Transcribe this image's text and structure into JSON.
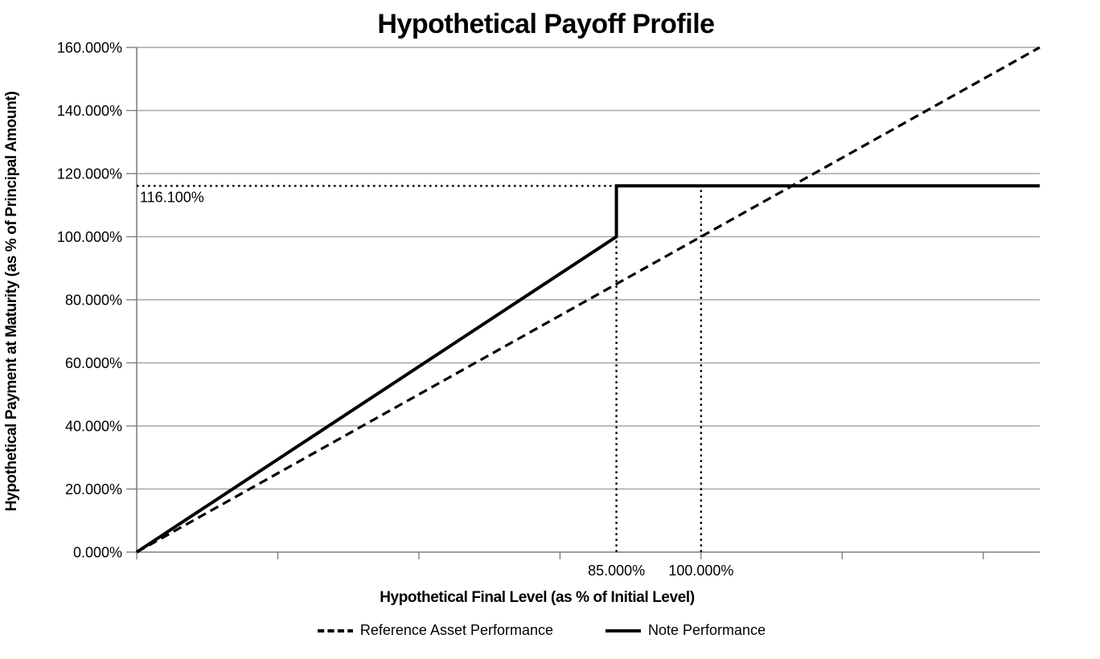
{
  "chart_data": {
    "type": "line",
    "title": "Hypothetical Payoff Profile",
    "xlabel": "Hypothetical Final Level (as % of Initial Level)",
    "ylabel": "Hypothetical Payment at Maturity (as % of Principal Amount)",
    "xlim": [
      0,
      160
    ],
    "ylim": [
      0,
      160
    ],
    "grid": true,
    "legend_position": "bottom",
    "y_ticks": [
      {
        "value": 0,
        "label": "0.000%"
      },
      {
        "value": 20,
        "label": "20.000%"
      },
      {
        "value": 40,
        "label": "40.000%"
      },
      {
        "value": 60,
        "label": "60.000%"
      },
      {
        "value": 80,
        "label": "80.000%"
      },
      {
        "value": 100,
        "label": "100.000%"
      },
      {
        "value": 120,
        "label": "120.000%"
      },
      {
        "value": 140,
        "label": "140.000%"
      },
      {
        "value": 160,
        "label": "160.000%"
      }
    ],
    "x_tick_marks": [
      0,
      25,
      50,
      75,
      100,
      125,
      150
    ],
    "x_tick_labels": [
      {
        "value": 85,
        "label": "85.000%"
      },
      {
        "value": 100,
        "label": "100.000%"
      }
    ],
    "series": [
      {
        "name": "Reference Asset Performance",
        "style": "dashed",
        "color": "#000000",
        "points": [
          [
            0,
            0
          ],
          [
            160,
            160
          ]
        ]
      },
      {
        "name": "Note Performance",
        "style": "solid",
        "color": "#000000",
        "points": [
          [
            0,
            0
          ],
          [
            85,
            100
          ],
          [
            85,
            116.1
          ],
          [
            160,
            116.1
          ]
        ]
      }
    ],
    "reference_lines": [
      {
        "type": "dotted",
        "from": [
          0,
          116.1
        ],
        "to": [
          85,
          116.1
        ]
      },
      {
        "type": "dotted",
        "from": [
          85,
          0
        ],
        "to": [
          85,
          100
        ]
      },
      {
        "type": "dotted",
        "from": [
          100,
          0
        ],
        "to": [
          100,
          116.1
        ]
      }
    ],
    "annotations": [
      {
        "text": "116.100%",
        "y": 116.1,
        "position": "below-left-of-cap-line"
      }
    ],
    "colors": {
      "line": "#000000",
      "gridline": "#a6a6a6",
      "axis": "#7f7f7f",
      "text": "#000000",
      "background": "#ffffff"
    }
  }
}
